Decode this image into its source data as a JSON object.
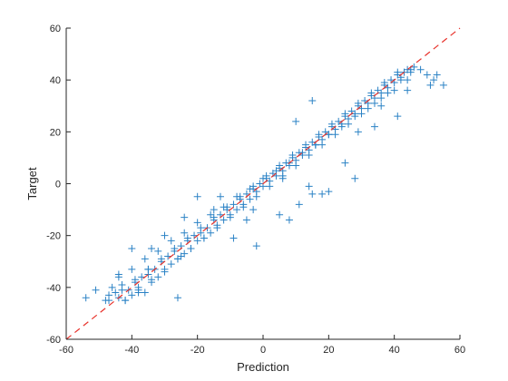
{
  "chart_data": {
    "type": "scatter",
    "title": "",
    "xlabel": "Prediction",
    "ylabel": "Target",
    "xlim": [
      -60,
      60
    ],
    "ylim": [
      -60,
      60
    ],
    "xticks": [
      -60,
      -40,
      -20,
      0,
      20,
      40,
      60
    ],
    "yticks": [
      -60,
      -40,
      -20,
      0,
      20,
      40,
      60
    ],
    "marker": "plus",
    "grid": false,
    "legend": "none",
    "series": [
      {
        "color": "#2b82c5",
        "x": [
          -54,
          -51,
          -48,
          -47,
          -46,
          -45,
          -44,
          -43,
          -42,
          -41,
          -40,
          -39,
          -38,
          -37,
          -36,
          -35,
          -34,
          -33,
          -32,
          -31,
          -30,
          -29,
          -28,
          -27,
          -26,
          -25,
          -24,
          -23,
          -22,
          -21,
          -20,
          -19,
          -18,
          -17,
          -16,
          -15,
          -14,
          -13,
          -12,
          -11,
          -10,
          -9,
          -8,
          -7,
          -6,
          -5,
          -4,
          -3,
          -2,
          -1,
          0,
          1,
          2,
          3,
          4,
          5,
          6,
          7,
          8,
          9,
          10,
          11,
          12,
          13,
          14,
          15,
          16,
          17,
          18,
          19,
          20,
          21,
          22,
          23,
          24,
          25,
          26,
          27,
          28,
          29,
          30,
          31,
          32,
          33,
          34,
          35,
          36,
          37,
          38,
          39,
          40,
          41,
          42,
          43,
          44,
          45,
          46,
          48,
          50,
          52,
          55,
          -44,
          -40,
          -36,
          -32,
          -28,
          -24,
          -20,
          -16,
          -12,
          -8,
          -4,
          0,
          4,
          8,
          12,
          16,
          20,
          24,
          28,
          32,
          36,
          40,
          44,
          -47,
          -43,
          -39,
          -35,
          -31,
          -27,
          -23,
          -19,
          -15,
          -11,
          -7,
          -3,
          1,
          5,
          9,
          13,
          17,
          21,
          25,
          29,
          33,
          37,
          41,
          45,
          -42,
          -38,
          -34,
          -30,
          -26,
          -22,
          -18,
          -14,
          -10,
          -6,
          -2,
          2,
          6,
          10,
          14,
          18,
          22,
          26,
          30,
          34,
          38,
          42,
          -30,
          -25,
          -34,
          -38,
          -20,
          -15,
          -3,
          -5,
          5,
          6,
          8,
          15,
          18,
          20,
          25,
          28,
          15,
          10,
          34,
          36,
          41,
          44,
          51,
          53,
          -40,
          -26,
          -24,
          -13,
          -9,
          -2,
          11,
          14,
          16,
          29,
          -35,
          -44
        ],
        "y": [
          -44,
          -41,
          -45,
          -43,
          -40,
          -42,
          -44,
          -39,
          -45,
          -41,
          -43,
          -38,
          -40,
          -36,
          -42,
          -35,
          -38,
          -33,
          -36,
          -30,
          -34,
          -28,
          -31,
          -26,
          -29,
          -24,
          -27,
          -22,
          -25,
          -20,
          -22,
          -19,
          -21,
          -17,
          -19,
          -14,
          -16,
          -12,
          -14,
          -10,
          -12,
          -8,
          -10,
          -6,
          -8,
          -4,
          -6,
          -2,
          -3,
          0,
          -1,
          2,
          1,
          4,
          3,
          6,
          5,
          8,
          7,
          10,
          9,
          12,
          11,
          14,
          13,
          16,
          15,
          18,
          17,
          20,
          19,
          22,
          21,
          24,
          23,
          26,
          25,
          28,
          27,
          30,
          29,
          32,
          31,
          34,
          33,
          36,
          35,
          38,
          37,
          40,
          39,
          42,
          41,
          43,
          44,
          43,
          45,
          44,
          42,
          40,
          38,
          -36,
          -33,
          -29,
          -26,
          -22,
          -19,
          -15,
          -12,
          -9,
          -5,
          -2,
          2,
          5,
          8,
          12,
          15,
          19,
          22,
          26,
          29,
          33,
          36,
          40,
          -45,
          -41,
          -37,
          -33,
          -29,
          -25,
          -21,
          -17,
          -13,
          -9,
          -5,
          -1,
          3,
          7,
          11,
          15,
          19,
          23,
          27,
          31,
          35,
          39,
          43,
          44,
          -45,
          -41,
          -37,
          -33,
          -29,
          -25,
          -21,
          -17,
          -13,
          -9,
          -5,
          -1,
          3,
          7,
          11,
          15,
          19,
          23,
          27,
          31,
          35,
          40,
          -20,
          -28,
          -25,
          -42,
          -5,
          -10,
          -10,
          -14,
          -12,
          2,
          -14,
          -4,
          -4,
          -3,
          8,
          2,
          32,
          24,
          22,
          30,
          26,
          36,
          38,
          42,
          -25,
          -44,
          -13,
          -5,
          -21,
          -24,
          -8,
          -1,
          15,
          20,
          -33,
          -35
        ]
      },
      {
        "color": "#e8322b",
        "style": "dashed",
        "x": [
          -60,
          60
        ],
        "y": [
          -60,
          60
        ]
      }
    ]
  }
}
